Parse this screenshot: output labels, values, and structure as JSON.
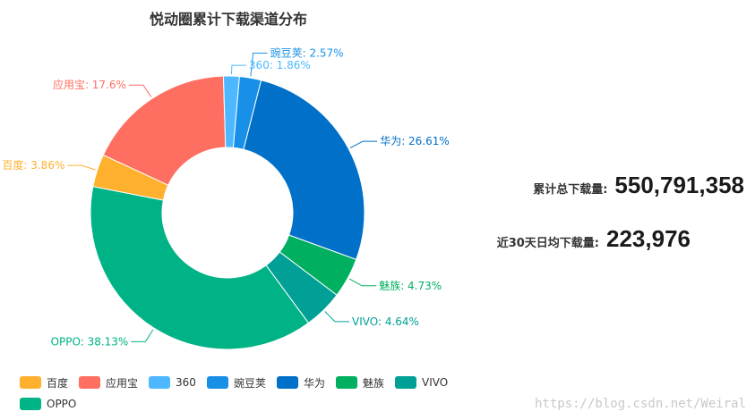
{
  "chart_data": {
    "type": "pie",
    "title": "悦动圈累计下载渠道分布",
    "donut": true,
    "legend_position": "bottom-left",
    "series": [
      {
        "name": "百度",
        "value": 3.86,
        "label": "百度: 3.86%",
        "color": "#ffb12e"
      },
      {
        "name": "应用宝",
        "value": 17.6,
        "label": "应用宝: 17.6%",
        "color": "#ff6f61"
      },
      {
        "name": "360",
        "value": 1.86,
        "label": "360: 1.86%",
        "color": "#4db8ff"
      },
      {
        "name": "豌豆荚",
        "value": 2.57,
        "label": "豌豆荚: 2.57%",
        "color": "#1890e8"
      },
      {
        "name": "华为",
        "value": 26.61,
        "label": "华为: 26.61%",
        "color": "#0070c8"
      },
      {
        "name": "魅族",
        "value": 4.73,
        "label": "魅族: 4.73%",
        "color": "#00b060"
      },
      {
        "name": "VIVO",
        "value": 4.64,
        "label": "VIVO: 4.64%",
        "color": "#00a097"
      },
      {
        "name": "OPPO",
        "value": 38.13,
        "label": "OPPO: 38.13%",
        "color": "#00b386"
      }
    ]
  },
  "stats": {
    "total_label": "累计总下载量:",
    "total_value": "550,791,358",
    "recent_label": "近30天日均下载量:",
    "recent_value": "223,976"
  },
  "watermark": "https://blog.csdn.net/Weiral"
}
